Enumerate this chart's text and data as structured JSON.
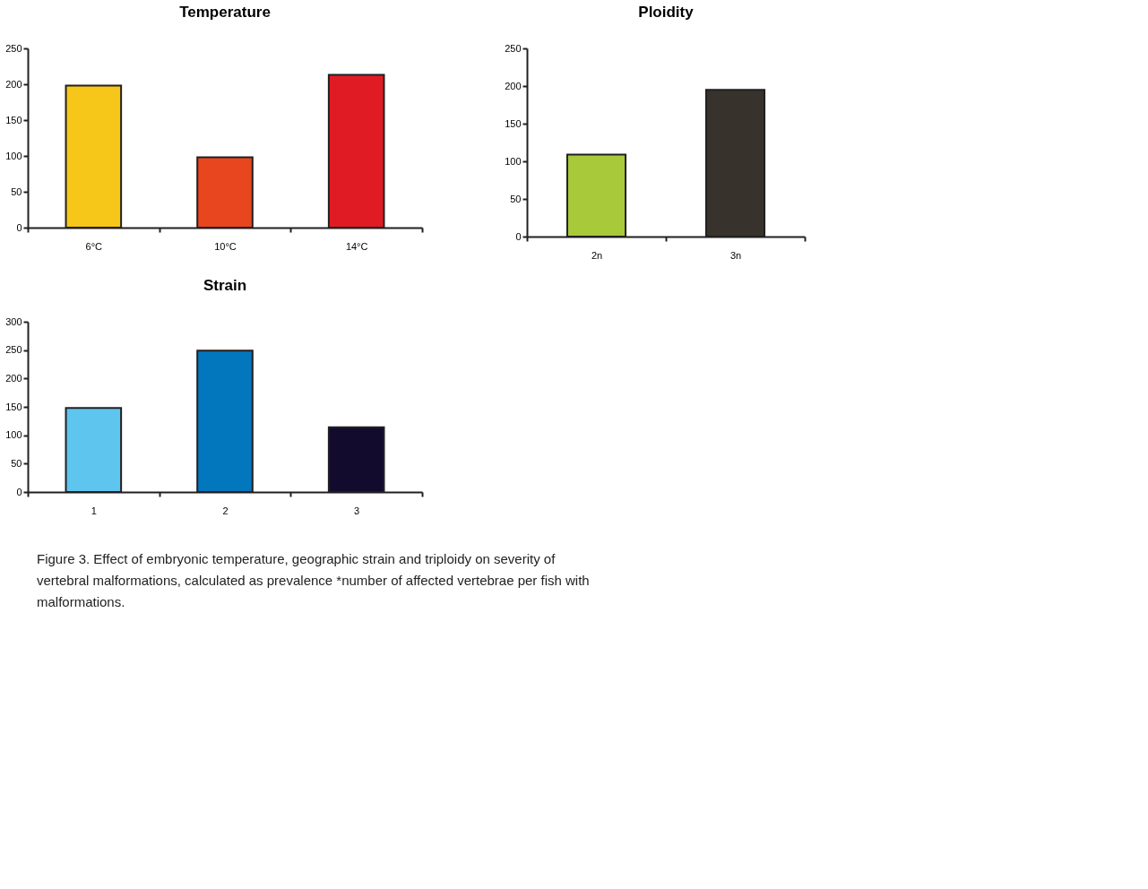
{
  "chart_data": [
    {
      "type": "bar",
      "title": "Temperature",
      "categories": [
        "6°C",
        "10°C",
        "14°C"
      ],
      "values": [
        198,
        98,
        213
      ],
      "colors": [
        "#f6c619",
        "#e8461f",
        "#e01b24"
      ],
      "ylim": [
        0,
        250
      ],
      "yticks": [
        0,
        50,
        100,
        150,
        200,
        250
      ],
      "grid": false
    },
    {
      "type": "bar",
      "title": "Ploidity",
      "categories": [
        "2n",
        "3n"
      ],
      "values": [
        109,
        195
      ],
      "colors": [
        "#a8c93a",
        "#37332c"
      ],
      "ylim": [
        0,
        250
      ],
      "yticks": [
        0,
        50,
        100,
        150,
        200,
        250
      ],
      "grid": false
    },
    {
      "type": "bar",
      "title": "Strain",
      "categories": [
        "1",
        "2",
        "3"
      ],
      "values": [
        148,
        249,
        114
      ],
      "colors": [
        "#5ec5ee",
        "#0277bd",
        "#130b2e"
      ],
      "ylim": [
        0,
        300
      ],
      "yticks": [
        0,
        50,
        100,
        150,
        200,
        250,
        300
      ],
      "grid": false,
      "annotations": [
        "Figure 3. Effect of embryonic temperature, geographic strain and triploidy on severity of vertebral malformations, calculated as prevalence *number of affected vertebrae per fish with malformations."
      ]
    }
  ]
}
